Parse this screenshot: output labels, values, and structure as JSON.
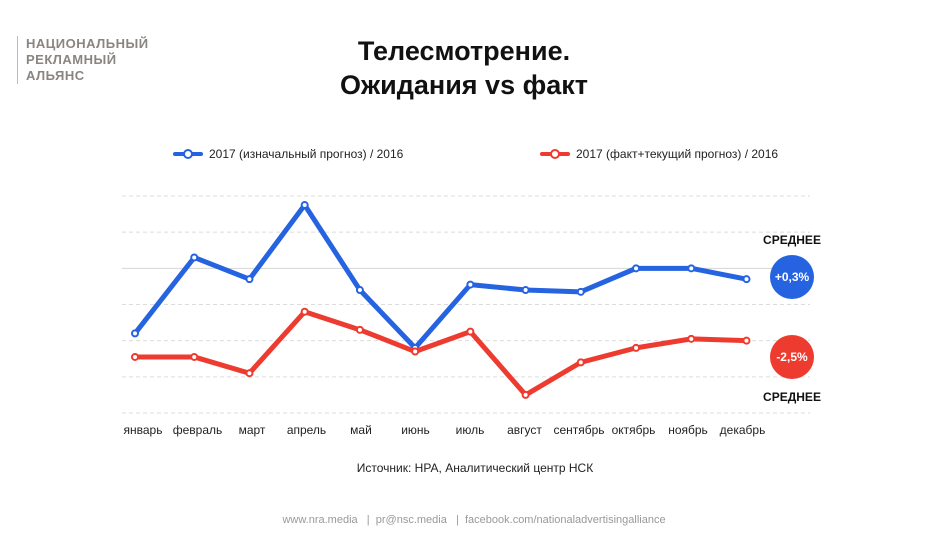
{
  "logo": [
    "НАЦИОНАЛЬНЫЙ",
    "РЕКЛАМНЫЙ",
    "АЛЬЯНС"
  ],
  "title": [
    "Телесмотрение.",
    "Ожидания vs факт"
  ],
  "source": "Источник: НРА, Аналитический центр НСК",
  "footer": "www.nra.media   |  pr@nsc.media   |  facebook.com/nationaladvertisingalliance",
  "chart_data": {
    "type": "line",
    "title": "Телесмотрение. Ожидания vs факт",
    "xlabel": "",
    "ylabel": "",
    "categories": [
      "январь",
      "февраль",
      "март",
      "апрель",
      "май",
      "июнь",
      "июль",
      "август",
      "сентябрь",
      "октябрь",
      "ноябрь",
      "декабрь"
    ],
    "ylim": [
      0,
      6
    ],
    "grid": true,
    "legend_position": "top",
    "series": [
      {
        "name": "2017 (изначальный прогноз) / 2016",
        "color": "#2563e0",
        "values": [
          2.2,
          4.3,
          3.7,
          5.75,
          3.4,
          1.8,
          3.55,
          3.4,
          3.35,
          4.0,
          4.0,
          3.7
        ],
        "average_label": "СРЕДНЕЕ",
        "average": "+0,3%"
      },
      {
        "name": "2017 (факт+текущий прогноз) / 2016",
        "color": "#ee3b30",
        "values": [
          1.55,
          1.55,
          1.1,
          2.8,
          2.3,
          1.7,
          2.25,
          0.5,
          1.4,
          1.8,
          2.05,
          2.0
        ],
        "average_label": "СРЕДНЕЕ",
        "average": "-2,5%"
      }
    ]
  }
}
